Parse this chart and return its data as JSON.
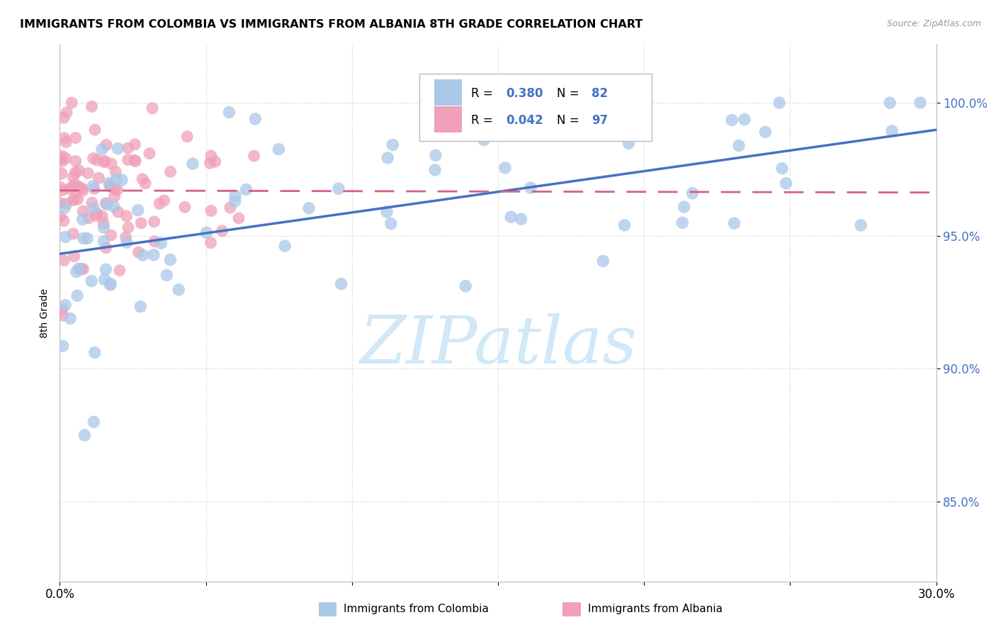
{
  "title": "IMMIGRANTS FROM COLOMBIA VS IMMIGRANTS FROM ALBANIA 8TH GRADE CORRELATION CHART",
  "source": "Source: ZipAtlas.com",
  "ylabel": "8th Grade",
  "ytick_labels": [
    "85.0%",
    "90.0%",
    "95.0%",
    "100.0%"
  ],
  "ytick_values": [
    0.85,
    0.9,
    0.95,
    1.0
  ],
  "xmin": 0.0,
  "xmax": 0.3,
  "ymin": 0.82,
  "ymax": 1.022,
  "color_colombia": "#aac8e8",
  "color_albania": "#f0a0b8",
  "color_line_colombia": "#4472c4",
  "color_line_albania": "#d4608a",
  "color_yticks": "#4472c4",
  "watermark_color": "#d0e8f8",
  "legend_R1": "0.380",
  "legend_N1": "82",
  "legend_R2": "0.042",
  "legend_N2": "97"
}
